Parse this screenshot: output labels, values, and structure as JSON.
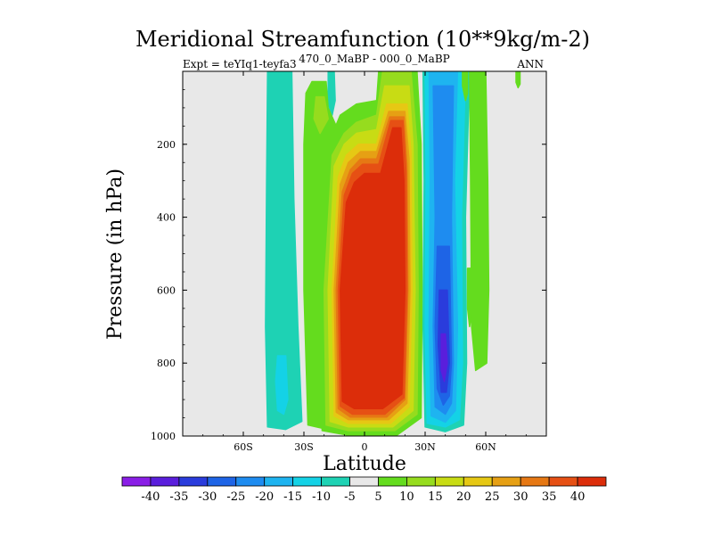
{
  "chart_data": {
    "type": "contour",
    "title": "Meridional Streamfunction (10**9kg/m-2)",
    "left_label": "Expt = teYIq1-teyfa3",
    "center_label": "470_0_MaBP - 000_0_MaBP",
    "right_label": "ANN",
    "xlabel": "Latitude",
    "ylabel": "Pressure (in hPa)",
    "xlim": [
      -90,
      90
    ],
    "ylim": [
      0,
      1000
    ],
    "x_ticks": [
      {
        "value": -60,
        "label": "60S"
      },
      {
        "value": -30,
        "label": "30S"
      },
      {
        "value": 0,
        "label": "0"
      },
      {
        "value": 30,
        "label": "30N"
      },
      {
        "value": 60,
        "label": "60N"
      }
    ],
    "y_ticks": [
      200,
      400,
      600,
      800,
      1000
    ],
    "background_color": "#e8e8e8",
    "colorbar": {
      "labels": [
        "-40",
        "-35",
        "-30",
        "-25",
        "-20",
        "-15",
        "-10",
        "-5",
        "5",
        "10",
        "15",
        "20",
        "25",
        "30",
        "35",
        "40"
      ],
      "colors": [
        "#8a1ee6",
        "#5a1edc",
        "#2a3cdc",
        "#1e64e6",
        "#1e8cf0",
        "#1eb4f0",
        "#14d2e6",
        "#1ed2b4",
        "#e8e8e8",
        "#64dc1e",
        "#96dc1e",
        "#c8dc14",
        "#e6c814",
        "#e6a014",
        "#e67814",
        "#e65014",
        "#dc2d0a"
      ]
    },
    "features": [
      {
        "name": "tropical-positive-cell",
        "lat_range": [
          -22,
          28
        ],
        "p_range": [
          110,
          1000
        ],
        "peak": 40
      },
      {
        "name": "northern-negative-cell",
        "lat_range": [
          30,
          50
        ],
        "p_range": [
          0,
          980
        ],
        "peak": -35
      },
      {
        "name": "southern-negative-column",
        "lat_range": [
          -49,
          -31
        ],
        "p_range": [
          0,
          980
        ],
        "peak": -15
      },
      {
        "name": "southern-positive-column",
        "lat_range": [
          -30,
          -12
        ],
        "p_range": [
          0,
          980
        ],
        "peak": 15
      },
      {
        "name": "northern-positive-column",
        "lat_range": [
          52,
          63
        ],
        "p_range": [
          0,
          820
        ],
        "peak": 10
      }
    ]
  }
}
